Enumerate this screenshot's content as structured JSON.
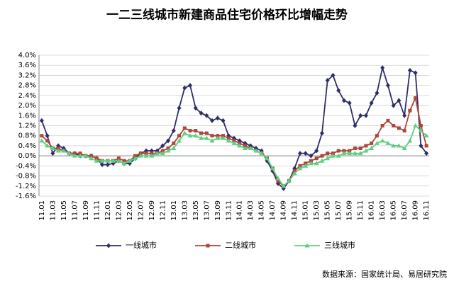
{
  "chart_data": {
    "type": "line",
    "title": "一二三线城市新建商品住宅价格环比增幅走势",
    "source": "数据来源：国家统计局、易居研究院",
    "categories": [
      "11.01",
      null,
      "11.03",
      null,
      "11.05",
      null,
      "11.07",
      null,
      "11.09",
      null,
      "11.11",
      null,
      "12.01",
      null,
      "12.03",
      null,
      "12.05",
      null,
      "12.07",
      null,
      "12.09",
      null,
      "12.11",
      null,
      "13.01",
      null,
      "13.03",
      null,
      "13.05",
      null,
      "13.07",
      null,
      "13.09",
      null,
      "13.11",
      null,
      "14.01",
      null,
      "14.03",
      null,
      "14.05",
      null,
      "14.07",
      null,
      "14.09",
      null,
      "14.11",
      null,
      "15.01",
      null,
      "15.03",
      null,
      "15.05",
      null,
      "15.07",
      null,
      "15.09",
      null,
      "15.11",
      null,
      "16.01",
      null,
      "16.03",
      null,
      "16.05",
      null,
      "16.07",
      null,
      "16.09",
      null,
      "16.11"
    ],
    "series": [
      {
        "name": "一线城市",
        "color": "#2e2e6e",
        "marker": "diamond",
        "values": [
          1.4,
          0.8,
          0.1,
          0.4,
          0.3,
          0.1,
          0.1,
          0.0,
          0.0,
          0.0,
          -0.1,
          -0.35,
          -0.35,
          -0.3,
          -0.2,
          -0.3,
          -0.3,
          -0.1,
          0.1,
          0.2,
          0.2,
          0.2,
          0.4,
          0.6,
          1.0,
          1.9,
          2.7,
          2.8,
          1.9,
          1.7,
          1.6,
          1.4,
          1.5,
          1.4,
          0.8,
          0.7,
          0.6,
          0.5,
          0.4,
          0.3,
          0.2,
          -0.2,
          -0.6,
          -1.1,
          -1.3,
          -1.0,
          -0.5,
          0.1,
          0.1,
          0.0,
          0.2,
          0.9,
          3.0,
          3.2,
          2.6,
          2.2,
          2.1,
          1.2,
          1.6,
          1.6,
          2.1,
          2.5,
          3.5,
          2.8,
          2.0,
          2.2,
          1.6,
          3.4,
          3.3,
          0.4,
          0.1
        ]
      },
      {
        "name": "二线城市",
        "color": "#b0453a",
        "marker": "square",
        "values": [
          0.8,
          0.6,
          0.3,
          0.3,
          0.2,
          0.1,
          0.1,
          0.1,
          0.0,
          0.0,
          -0.1,
          -0.2,
          -0.2,
          -0.2,
          -0.1,
          -0.2,
          -0.2,
          0.0,
          0.1,
          0.1,
          0.1,
          0.1,
          0.2,
          0.3,
          0.5,
          0.8,
          1.1,
          1.0,
          1.0,
          0.9,
          0.9,
          0.8,
          0.8,
          0.8,
          0.7,
          0.6,
          0.5,
          0.4,
          0.3,
          0.2,
          0.1,
          -0.1,
          -0.5,
          -1.0,
          -1.2,
          -1.0,
          -0.6,
          -0.4,
          -0.3,
          -0.2,
          -0.1,
          0.0,
          0.1,
          0.1,
          0.2,
          0.2,
          0.2,
          0.3,
          0.3,
          0.4,
          0.5,
          0.8,
          1.2,
          1.4,
          1.2,
          1.1,
          1.0,
          1.8,
          2.3,
          1.2,
          0.4
        ]
      },
      {
        "name": "三线城市",
        "color": "#5fcf80",
        "marker": "triangle",
        "values": [
          0.6,
          0.4,
          0.3,
          0.2,
          0.2,
          0.1,
          0.0,
          0.0,
          0.0,
          -0.1,
          -0.2,
          -0.2,
          -0.2,
          -0.2,
          -0.2,
          -0.3,
          -0.2,
          -0.1,
          0.0,
          0.0,
          0.0,
          0.1,
          0.1,
          0.2,
          0.3,
          0.6,
          0.9,
          0.8,
          0.8,
          0.7,
          0.7,
          0.6,
          0.7,
          0.7,
          0.6,
          0.5,
          0.4,
          0.3,
          0.3,
          0.2,
          0.1,
          -0.1,
          -0.5,
          -0.9,
          -1.2,
          -1.0,
          -0.7,
          -0.5,
          -0.4,
          -0.3,
          -0.3,
          -0.2,
          -0.1,
          0.0,
          0.0,
          0.1,
          0.1,
          0.1,
          0.1,
          0.2,
          0.3,
          0.5,
          0.6,
          0.5,
          0.4,
          0.4,
          0.3,
          0.6,
          1.2,
          1.0,
          0.8
        ]
      }
    ],
    "ylim": [
      -1.6,
      4.0
    ],
    "yticks": [
      {
        "value": -1.6,
        "label": "-1.6%"
      },
      {
        "value": -1.2,
        "label": "-1.2%"
      },
      {
        "value": -0.8,
        "label": "-0.8%"
      },
      {
        "value": -0.4,
        "label": "-0.4%"
      },
      {
        "value": 0,
        "label": "0.0%"
      },
      {
        "value": 0.4,
        "label": "0.4%"
      },
      {
        "value": 0.8,
        "label": "0.8%"
      },
      {
        "value": 1.2,
        "label": "1.2%"
      },
      {
        "value": 1.6,
        "label": "1.6%"
      },
      {
        "value": 2.0,
        "label": "2.0%"
      },
      {
        "value": 2.4,
        "label": "2.4%"
      },
      {
        "value": 2.8,
        "label": "2.8%"
      },
      {
        "value": 3.2,
        "label": "3.2%"
      },
      {
        "value": 3.6,
        "label": "3.6%"
      },
      {
        "value": 4.0,
        "label": "4.0%"
      }
    ],
    "grid": true
  }
}
